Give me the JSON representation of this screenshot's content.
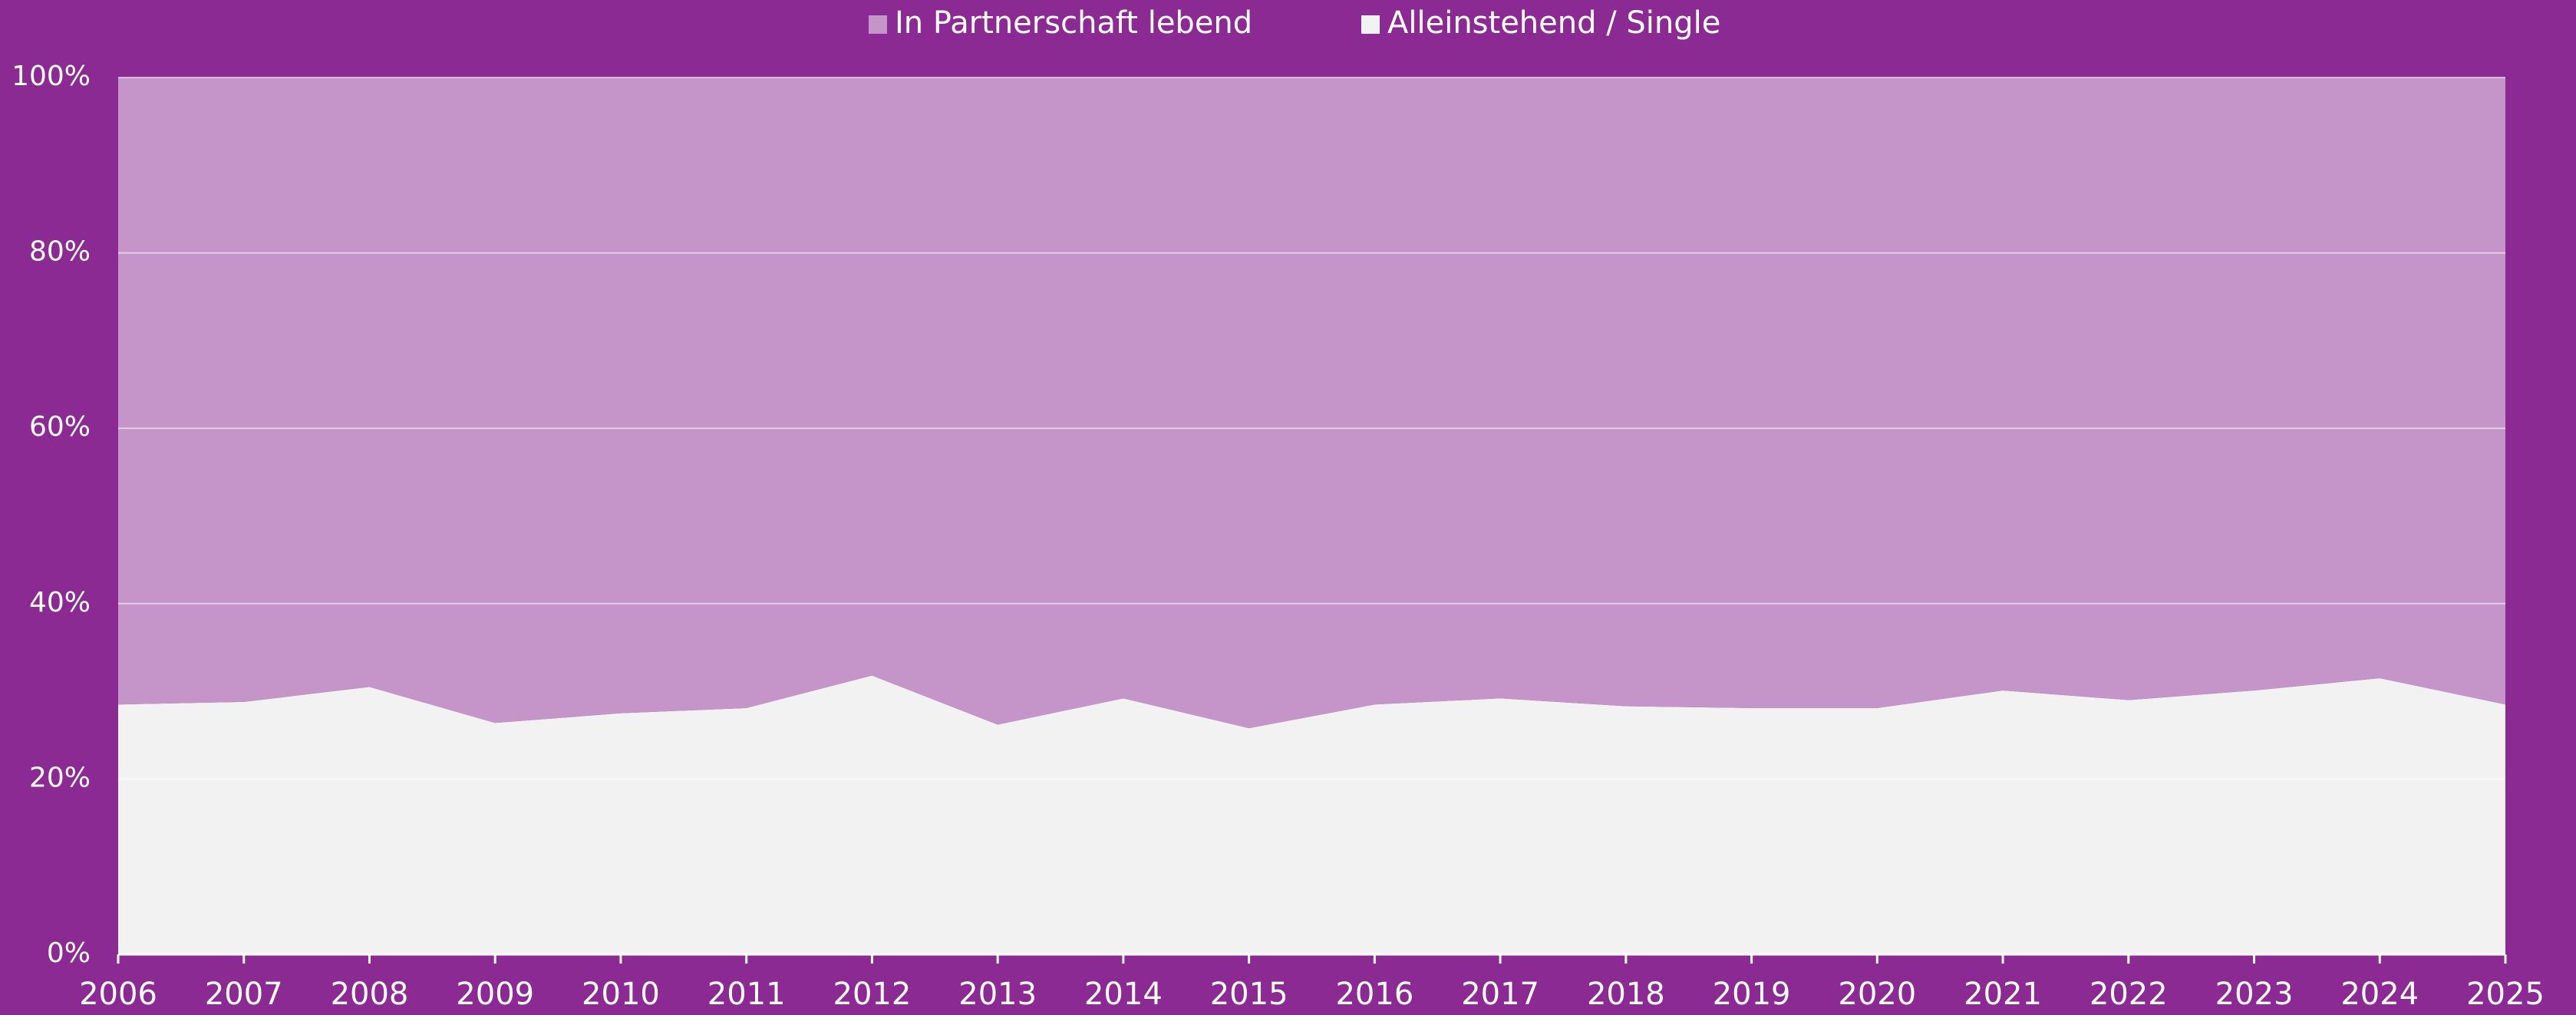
{
  "chart_data": {
    "type": "stacked_area",
    "categories": [
      "2006",
      "2007",
      "2008",
      "2009",
      "2010",
      "2011",
      "2012",
      "2013",
      "2014",
      "2015",
      "2016",
      "2017",
      "2018",
      "2019",
      "2020",
      "2021",
      "2022",
      "2023",
      "2024",
      "2025"
    ],
    "series": [
      {
        "name": "In Partnerschaft lebend",
        "color": "#c594c8",
        "values": [
          71.5,
          71.2,
          69.5,
          73.6,
          72.5,
          71.9,
          68.2,
          73.8,
          70.8,
          74.2,
          71.5,
          70.8,
          71.7,
          71.9,
          71.9,
          69.9,
          71.0,
          69.9,
          68.5,
          71.5
        ]
      },
      {
        "name": "Alleinstehend / Single",
        "color": "#f2f2f2",
        "values": [
          28.5,
          28.8,
          30.5,
          26.4,
          27.5,
          28.1,
          31.8,
          26.2,
          29.2,
          25.8,
          28.5,
          29.2,
          28.3,
          28.1,
          28.1,
          30.1,
          29.0,
          30.1,
          31.5,
          28.5
        ]
      }
    ],
    "ylim": [
      0,
      100
    ],
    "yticks": [
      {
        "value": 0,
        "label": "0%"
      },
      {
        "value": 20,
        "label": "20%"
      },
      {
        "value": 40,
        "label": "40%"
      },
      {
        "value": 60,
        "label": "60%"
      },
      {
        "value": 80,
        "label": "80%"
      },
      {
        "value": 100,
        "label": "100%"
      }
    ],
    "grid": true,
    "legend": "top"
  }
}
